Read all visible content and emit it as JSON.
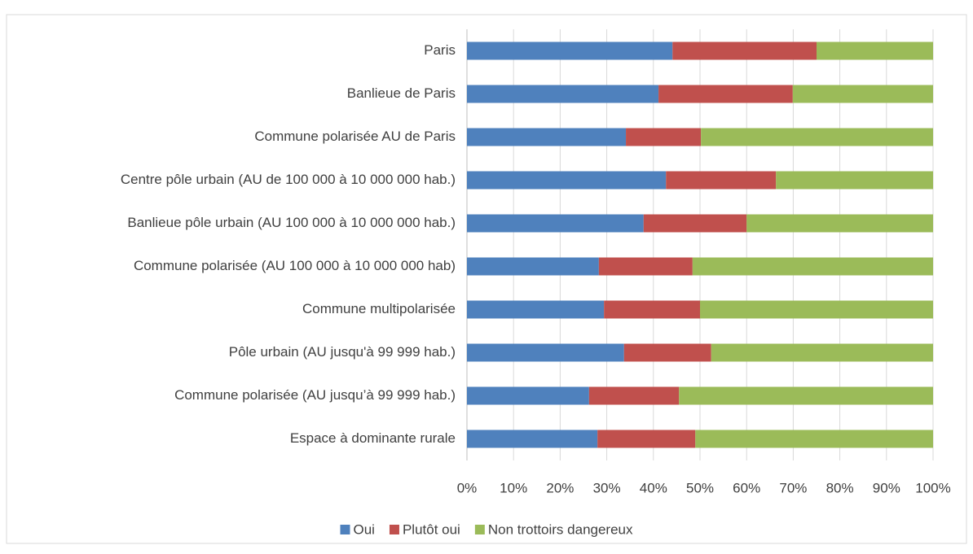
{
  "chart_data": {
    "type": "stacked_barh",
    "categories": [
      "Paris",
      "Banlieue de Paris",
      "Commune polarisée AU de Paris",
      "Centre pôle urbain (AU de 100 000 à 10 000 000 hab.)",
      "Banlieue pôle urbain (AU 100 000 à 10 000 000 hab.)",
      "Commune polarisée (AU 100 000 à 10 000 000 hab)",
      "Commune multipolarisée",
      "Pôle urbain (AU jusqu'à 99 999 hab.)",
      "Commune polarisée (AU jusqu’à 99 999 hab.)",
      "Espace à dominante rurale"
    ],
    "series": [
      {
        "name": "Oui",
        "color": "#4f81bd",
        "values": [
          44.1,
          41.1,
          34.1,
          42.7,
          37.9,
          28.3,
          29.4,
          33.7,
          26.2,
          28.0
        ]
      },
      {
        "name": "Plutôt oui",
        "color": "#c0504d",
        "values": [
          30.9,
          28.8,
          16.1,
          23.6,
          22.1,
          20.1,
          20.6,
          18.7,
          19.3,
          21.0
        ]
      },
      {
        "name": "Non trottoirs dangereux",
        "color": "#9bbb59",
        "values": [
          25.0,
          30.1,
          49.8,
          33.7,
          40.0,
          51.6,
          50.0,
          47.6,
          54.5,
          51.0
        ]
      }
    ],
    "xlim": [
      0,
      100
    ],
    "xticks": [
      {
        "value": 0,
        "label": "0%"
      },
      {
        "value": 10,
        "label": "10%"
      },
      {
        "value": 20,
        "label": "20%"
      },
      {
        "value": 30,
        "label": "30%"
      },
      {
        "value": 40,
        "label": "40%"
      },
      {
        "value": 50,
        "label": "50%"
      },
      {
        "value": 60,
        "label": "60%"
      },
      {
        "value": 70,
        "label": "70%"
      },
      {
        "value": 80,
        "label": "80%"
      },
      {
        "value": 90,
        "label": "90%"
      },
      {
        "value": 100,
        "label": "100%"
      }
    ],
    "grid": true,
    "legend": "bottom"
  }
}
